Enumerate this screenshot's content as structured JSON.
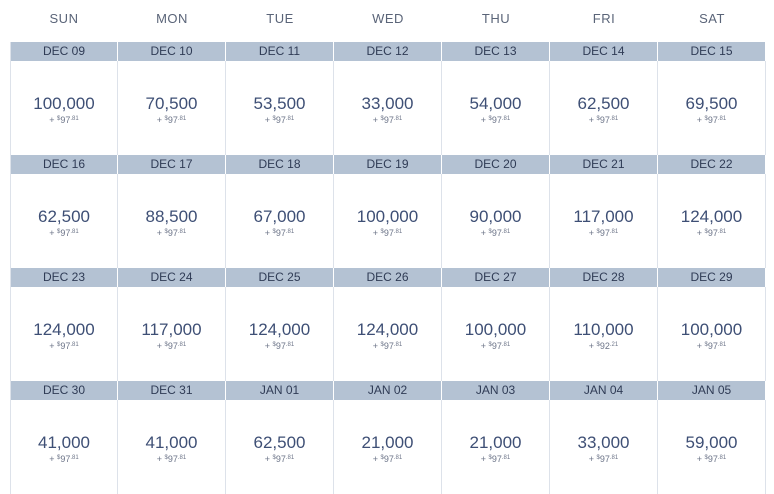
{
  "days_of_week": [
    "SUN",
    "MON",
    "TUE",
    "WED",
    "THU",
    "FRI",
    "SAT"
  ],
  "weeks": [
    [
      {
        "date": "DEC 09",
        "miles": "100,000",
        "fee_prefix": "+ ",
        "fee_dollar": "$",
        "fee_main": "97",
        "fee_cents": ".81"
      },
      {
        "date": "DEC 10",
        "miles": "70,500",
        "fee_prefix": "+ ",
        "fee_dollar": "$",
        "fee_main": "97",
        "fee_cents": ".81"
      },
      {
        "date": "DEC 11",
        "miles": "53,500",
        "fee_prefix": "+ ",
        "fee_dollar": "$",
        "fee_main": "97",
        "fee_cents": ".81"
      },
      {
        "date": "DEC 12",
        "miles": "33,000",
        "fee_prefix": "+ ",
        "fee_dollar": "$",
        "fee_main": "97",
        "fee_cents": ".81"
      },
      {
        "date": "DEC 13",
        "miles": "54,000",
        "fee_prefix": "+ ",
        "fee_dollar": "$",
        "fee_main": "97",
        "fee_cents": ".81"
      },
      {
        "date": "DEC 14",
        "miles": "62,500",
        "fee_prefix": "+ ",
        "fee_dollar": "$",
        "fee_main": "97",
        "fee_cents": ".81"
      },
      {
        "date": "DEC 15",
        "miles": "69,500",
        "fee_prefix": "+ ",
        "fee_dollar": "$",
        "fee_main": "97",
        "fee_cents": ".81"
      }
    ],
    [
      {
        "date": "DEC 16",
        "miles": "62,500",
        "fee_prefix": "+ ",
        "fee_dollar": "$",
        "fee_main": "97",
        "fee_cents": ".81"
      },
      {
        "date": "DEC 17",
        "miles": "88,500",
        "fee_prefix": "+ ",
        "fee_dollar": "$",
        "fee_main": "97",
        "fee_cents": ".81"
      },
      {
        "date": "DEC 18",
        "miles": "67,000",
        "fee_prefix": "+ ",
        "fee_dollar": "$",
        "fee_main": "97",
        "fee_cents": ".81"
      },
      {
        "date": "DEC 19",
        "miles": "100,000",
        "fee_prefix": "+ ",
        "fee_dollar": "$",
        "fee_main": "97",
        "fee_cents": ".81"
      },
      {
        "date": "DEC 20",
        "miles": "90,000",
        "fee_prefix": "+ ",
        "fee_dollar": "$",
        "fee_main": "97",
        "fee_cents": ".81"
      },
      {
        "date": "DEC 21",
        "miles": "117,000",
        "fee_prefix": "+ ",
        "fee_dollar": "$",
        "fee_main": "97",
        "fee_cents": ".81"
      },
      {
        "date": "DEC 22",
        "miles": "124,000",
        "fee_prefix": "+ ",
        "fee_dollar": "$",
        "fee_main": "97",
        "fee_cents": ".81"
      }
    ],
    [
      {
        "date": "DEC 23",
        "miles": "124,000",
        "fee_prefix": "+ ",
        "fee_dollar": "$",
        "fee_main": "97",
        "fee_cents": ".81"
      },
      {
        "date": "DEC 24",
        "miles": "117,000",
        "fee_prefix": "+ ",
        "fee_dollar": "$",
        "fee_main": "97",
        "fee_cents": ".81"
      },
      {
        "date": "DEC 25",
        "miles": "124,000",
        "fee_prefix": "+ ",
        "fee_dollar": "$",
        "fee_main": "97",
        "fee_cents": ".81"
      },
      {
        "date": "DEC 26",
        "miles": "124,000",
        "fee_prefix": "+ ",
        "fee_dollar": "$",
        "fee_main": "97",
        "fee_cents": ".81"
      },
      {
        "date": "DEC 27",
        "miles": "100,000",
        "fee_prefix": "+ ",
        "fee_dollar": "$",
        "fee_main": "97",
        "fee_cents": ".81"
      },
      {
        "date": "DEC 28",
        "miles": "110,000",
        "fee_prefix": "+ ",
        "fee_dollar": "$",
        "fee_main": "92",
        "fee_cents": ".21"
      },
      {
        "date": "DEC 29",
        "miles": "100,000",
        "fee_prefix": "+ ",
        "fee_dollar": "$",
        "fee_main": "97",
        "fee_cents": ".81"
      }
    ],
    [
      {
        "date": "DEC 30",
        "miles": "41,000",
        "fee_prefix": "+ ",
        "fee_dollar": "$",
        "fee_main": "97",
        "fee_cents": ".81"
      },
      {
        "date": "DEC 31",
        "miles": "41,000",
        "fee_prefix": "+ ",
        "fee_dollar": "$",
        "fee_main": "97",
        "fee_cents": ".81"
      },
      {
        "date": "JAN 01",
        "miles": "62,500",
        "fee_prefix": "+ ",
        "fee_dollar": "$",
        "fee_main": "97",
        "fee_cents": ".81"
      },
      {
        "date": "JAN 02",
        "miles": "21,000",
        "fee_prefix": "+ ",
        "fee_dollar": "$",
        "fee_main": "97",
        "fee_cents": ".81"
      },
      {
        "date": "JAN 03",
        "miles": "21,000",
        "fee_prefix": "+ ",
        "fee_dollar": "$",
        "fee_main": "97",
        "fee_cents": ".81"
      },
      {
        "date": "JAN 04",
        "miles": "33,000",
        "fee_prefix": "+ ",
        "fee_dollar": "$",
        "fee_main": "97",
        "fee_cents": ".81"
      },
      {
        "date": "JAN 05",
        "miles": "59,000",
        "fee_prefix": "+ ",
        "fee_dollar": "$",
        "fee_main": "97",
        "fee_cents": ".81"
      }
    ]
  ]
}
